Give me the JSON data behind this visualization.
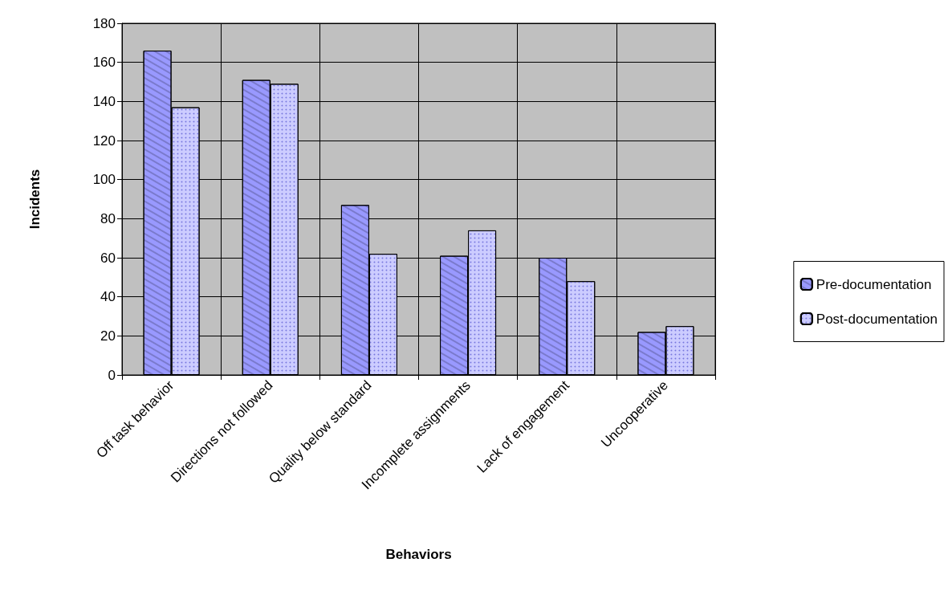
{
  "chart_data": {
    "type": "bar",
    "xlabel": "Behaviors",
    "ylabel": "Incidents",
    "categories": [
      "Off task behavior",
      "Directions not followed",
      "Quality below standard",
      "Incomplete assignments",
      "Lack of engagement",
      "Uncooperative"
    ],
    "series": [
      {
        "name": "Pre-documentation",
        "color": "#9999ff",
        "values": [
          166,
          151,
          87,
          61,
          60,
          22
        ]
      },
      {
        "name": "Post-documentation",
        "color": "#ccccff",
        "values": [
          137,
          149,
          62,
          74,
          48,
          25
        ]
      }
    ],
    "ylim": [
      0,
      180
    ],
    "yticks": [
      0,
      20,
      40,
      60,
      80,
      100,
      120,
      140,
      160,
      180
    ],
    "grid": true,
    "legend": "right"
  }
}
